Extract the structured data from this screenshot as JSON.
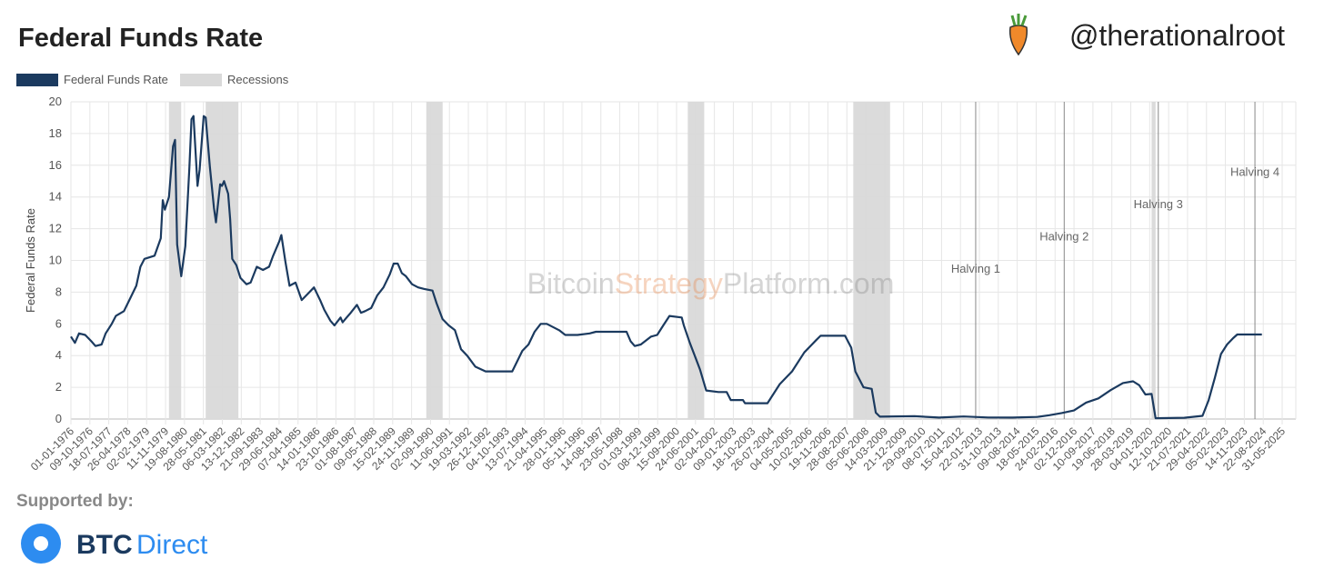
{
  "header": {
    "title": "Federal Funds Rate",
    "brand": "@therationalroot"
  },
  "chart_data": {
    "type": "line",
    "ylabel": "Federal Funds Rate",
    "watermark": [
      "Bitcoin",
      "Strategy",
      "Platform.com"
    ],
    "xlim": [
      "01-01-1976",
      "20-12-2025"
    ],
    "ylim": [
      0,
      20
    ],
    "yticks": [
      0,
      2,
      4,
      6,
      8,
      10,
      12,
      14,
      16,
      18,
      20
    ],
    "grid": true,
    "xticks": [
      "01-01-1976",
      "09-10-1976",
      "18-07-1977",
      "26-04-1978",
      "02-02-1979",
      "11-11-1979",
      "19-08-1980",
      "28-05-1981",
      "06-03-1982",
      "13-12-1982",
      "21-09-1983",
      "29-06-1984",
      "07-04-1985",
      "14-01-1986",
      "23-10-1986",
      "01-08-1987",
      "09-05-1988",
      "15-02-1989",
      "24-11-1989",
      "02-09-1990",
      "11-06-1991",
      "19-03-1992",
      "26-12-1992",
      "04-10-1993",
      "13-07-1994",
      "21-04-1995",
      "28-01-1996",
      "05-11-1996",
      "14-08-1997",
      "23-05-1998",
      "01-03-1999",
      "08-12-1999",
      "15-09-2000",
      "24-06-2001",
      "02-04-2002",
      "09-01-2003",
      "18-10-2003",
      "26-07-2004",
      "04-05-2005",
      "10-02-2006",
      "19-11-2006",
      "28-08-2007",
      "05-06-2008",
      "14-03-2009",
      "21-12-2009",
      "29-09-2010",
      "08-07-2011",
      "15-04-2012",
      "22-01-2013",
      "31-10-2013",
      "09-08-2014",
      "18-05-2015",
      "24-02-2016",
      "02-12-2016",
      "10-09-2017",
      "19-06-2018",
      "28-03-2019",
      "04-01-2020",
      "12-10-2020",
      "21-07-2021",
      "29-04-2022",
      "05-02-2023",
      "14-11-2023",
      "22-08-2024",
      "31-05-2025"
    ],
    "x": [
      "01-01-1976",
      "01-03-1976",
      "01-05-1976",
      "01-08-1976",
      "01-11-1976",
      "01-01-1977",
      "01-04-1977",
      "01-06-1977",
      "01-09-1977",
      "01-11-1977",
      "01-03-1978",
      "01-06-1978",
      "01-09-1978",
      "01-11-1978",
      "01-01-1979",
      "01-06-1979",
      "01-09-1979",
      "01-10-1979",
      "01-11-1979",
      "01-01-1980",
      "01-03-1980",
      "01-04-1980",
      "01-05-1980",
      "01-07-1980",
      "01-09-1980",
      "01-11-1980",
      "01-12-1980",
      "01-01-1981",
      "01-03-1981",
      "01-04-1981",
      "01-06-1981",
      "01-07-1981",
      "01-09-1981",
      "01-11-1981",
      "01-12-1981",
      "01-02-1982",
      "01-03-1982",
      "01-04-1982",
      "01-06-1982",
      "01-07-1982",
      "01-08-1982",
      "01-10-1982",
      "01-12-1982",
      "01-03-1983",
      "01-05-1983",
      "01-08-1983",
      "01-11-1983",
      "01-02-1984",
      "01-04-1984",
      "01-07-1984",
      "01-08-1984",
      "01-10-1984",
      "01-12-1984",
      "01-03-1985",
      "01-06-1985",
      "01-09-1985",
      "01-12-1985",
      "01-03-1986",
      "01-05-1986",
      "01-08-1986",
      "01-10-1986",
      "01-01-1987",
      "01-02-1987",
      "01-04-1987",
      "01-06-1987",
      "01-09-1987",
      "01-11-1987",
      "01-01-1988",
      "01-04-1988",
      "01-07-1988",
      "01-10-1988",
      "01-01-1989",
      "01-03-1989",
      "01-05-1989",
      "01-07-1989",
      "01-09-1989",
      "01-12-1989",
      "01-03-1990",
      "01-06-1990",
      "01-10-1990",
      "01-12-1990",
      "01-03-1991",
      "01-06-1991",
      "01-09-1991",
      "01-12-1991",
      "01-03-1992",
      "01-07-1992",
      "01-12-1992",
      "01-06-1993",
      "01-01-1994",
      "01-03-1994",
      "01-06-1994",
      "01-09-1994",
      "01-12-1994",
      "01-03-1995",
      "01-06-1995",
      "01-09-1995",
      "01-12-1995",
      "01-03-1996",
      "01-09-1996",
      "01-03-1997",
      "01-06-1997",
      "01-06-1998",
      "01-09-1998",
      "01-11-1998",
      "01-01-1999",
      "01-04-1999",
      "01-09-1999",
      "01-12-1999",
      "01-03-2000",
      "01-06-2000",
      "01-12-2000",
      "01-01-2001",
      "01-04-2001",
      "01-07-2001",
      "01-09-2001",
      "01-12-2001",
      "01-06-2002",
      "01-10-2002",
      "01-12-2002",
      "01-06-2003",
      "01-07-2003",
      "01-06-2004",
      "01-12-2004",
      "01-06-2005",
      "01-12-2005",
      "01-06-2006",
      "01-08-2006",
      "01-08-2007",
      "01-11-2007",
      "01-01-2008",
      "01-05-2008",
      "01-09-2008",
      "01-11-2008",
      "01-01-2009",
      "01-06-2010",
      "01-06-2011",
      "01-06-2012",
      "01-06-2013",
      "01-06-2014",
      "01-06-2015",
      "01-12-2015",
      "01-06-2016",
      "01-12-2016",
      "01-06-2017",
      "01-12-2017",
      "01-06-2018",
      "01-12-2018",
      "01-05-2019",
      "01-08-2019",
      "01-11-2019",
      "01-02-2020",
      "01-04-2020",
      "01-06-2021",
      "01-03-2022",
      "01-06-2022",
      "01-09-2022",
      "01-12-2022",
      "01-03-2023",
      "01-06-2023",
      "01-08-2023",
      "01-08-2024"
    ],
    "series": [
      {
        "name": "Federal Funds Rate",
        "color": "#1b3a5f",
        "values": [
          5.2,
          4.8,
          5.4,
          5.3,
          4.9,
          4.6,
          4.7,
          5.4,
          6.0,
          6.5,
          6.8,
          7.6,
          8.4,
          9.6,
          10.1,
          10.3,
          11.4,
          13.8,
          13.2,
          14.0,
          17.2,
          17.6,
          11.0,
          9.0,
          10.9,
          15.9,
          18.9,
          19.1,
          14.7,
          15.7,
          19.1,
          19.0,
          15.9,
          13.3,
          12.4,
          14.8,
          14.7,
          15.0,
          14.2,
          12.6,
          10.1,
          9.7,
          8.9,
          8.5,
          8.6,
          9.6,
          9.4,
          9.6,
          10.3,
          11.2,
          11.6,
          9.9,
          8.4,
          8.6,
          7.5,
          7.9,
          8.3,
          7.5,
          6.9,
          6.2,
          5.9,
          6.4,
          6.1,
          6.4,
          6.7,
          7.2,
          6.7,
          6.8,
          7.0,
          7.8,
          8.3,
          9.1,
          9.8,
          9.8,
          9.2,
          9.0,
          8.5,
          8.3,
          8.2,
          8.1,
          7.3,
          6.3,
          5.9,
          5.6,
          4.4,
          4.0,
          3.3,
          3.0,
          3.0,
          3.0,
          3.5,
          4.3,
          4.7,
          5.5,
          6.0,
          6.0,
          5.8,
          5.6,
          5.3,
          5.3,
          5.4,
          5.5,
          5.5,
          5.5,
          4.9,
          4.6,
          4.7,
          5.2,
          5.3,
          5.9,
          6.5,
          6.4,
          5.9,
          4.8,
          3.8,
          3.1,
          1.8,
          1.7,
          1.7,
          1.2,
          1.2,
          1.0,
          1.0,
          2.2,
          3.0,
          4.2,
          5.0,
          5.25,
          5.25,
          4.5,
          3.0,
          2.0,
          1.9,
          0.4,
          0.15,
          0.18,
          0.09,
          0.16,
          0.1,
          0.09,
          0.13,
          0.24,
          0.38,
          0.54,
          1.04,
          1.3,
          1.82,
          2.27,
          2.38,
          2.13,
          1.55,
          1.58,
          0.05,
          0.08,
          0.2,
          1.2,
          2.6,
          4.1,
          4.7,
          5.1,
          5.33,
          5.33
        ]
      }
    ],
    "recessions": {
      "name": "Recessions",
      "color": "#d9d9d9",
      "periods": [
        [
          "01-01-1980",
          "01-07-1980"
        ],
        [
          "01-07-1981",
          "01-11-1982"
        ],
        [
          "01-07-1990",
          "01-03-1991"
        ],
        [
          "01-03-2001",
          "01-11-2001"
        ],
        [
          "01-12-2007",
          "01-06-2009"
        ],
        [
          "01-02-2020",
          "01-04-2020"
        ]
      ]
    },
    "halvings": [
      {
        "date": "28-11-2012",
        "label": "Halving 1"
      },
      {
        "date": "09-07-2016",
        "label": "Halving 2"
      },
      {
        "date": "11-05-2020",
        "label": "Halving 3"
      },
      {
        "date": "20-04-2024",
        "label": "Halving 4"
      }
    ]
  },
  "footer": {
    "supported": "Supported by:",
    "logo": [
      "BTC",
      "Direct"
    ]
  }
}
